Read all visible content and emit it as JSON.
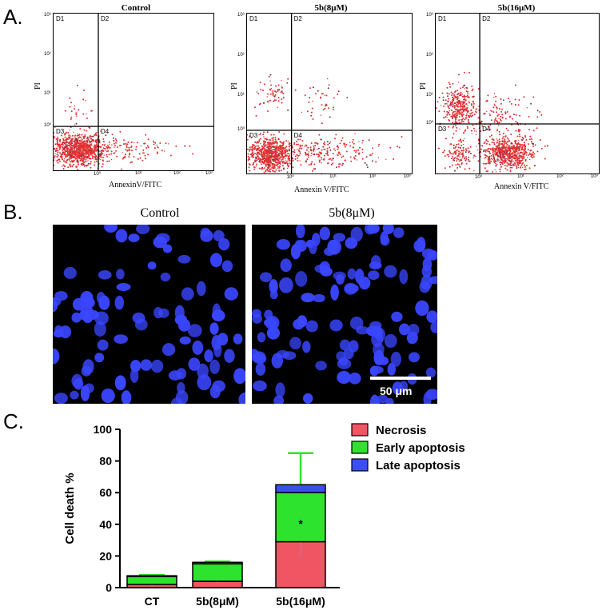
{
  "panels": {
    "a": "A.",
    "b": "B.",
    "c": "C."
  },
  "flow_plots": [
    {
      "title": "Control",
      "xlabel": "AnnexinV/FITC",
      "ylabel": "PI",
      "quadrants": [
        "D1",
        "D2",
        "D3",
        "D4"
      ]
    },
    {
      "title": "5b(8μM)",
      "xlabel": "Annexin V/FITC",
      "ylabel": "PI",
      "quadrants": [
        "D1",
        "D2",
        "D3",
        "D4"
      ]
    },
    {
      "title": "5b(16μM)",
      "xlabel": "Annexin V/FITC",
      "ylabel": "PI",
      "quadrants": [
        "D1",
        "D2",
        "D3",
        "D4"
      ]
    }
  ],
  "flow_ticks": {
    "y": [
      "10³",
      "10²",
      "10¹",
      "10⁰"
    ],
    "x": [
      "10⁰",
      "10¹",
      "10²",
      "10³"
    ]
  },
  "micrographs": {
    "left_title": "Control",
    "right_title": "5b(8μM)",
    "scale_label": "50 μm"
  },
  "colors": {
    "necrosis": "#f05563",
    "early": "#2ee32e",
    "late": "#3b4ef0",
    "dots": "#e83030",
    "nuclei": "#3a46ff"
  },
  "chart_data": {
    "type": "bar",
    "stacked": true,
    "categories": [
      "CT",
      "5b(8μM)",
      "5b(16μM)"
    ],
    "ylabel": "Cell death %",
    "ylim": [
      0,
      100
    ],
    "yticks": [
      0,
      20,
      40,
      60,
      80,
      100
    ],
    "legend_position": "top-right",
    "series": [
      {
        "name": "Necrosis",
        "values": [
          2,
          4,
          29
        ],
        "errors": [
          1,
          1.5,
          10
        ]
      },
      {
        "name": "Early apoptosis",
        "values": [
          5,
          11,
          31
        ],
        "errors": [
          1,
          1.5,
          25
        ]
      },
      {
        "name": "Late apoptosis",
        "values": [
          0.5,
          1,
          5
        ],
        "errors": [
          0,
          0,
          0
        ]
      }
    ],
    "annotations": [
      {
        "category": "5b(16μM)",
        "text": "*"
      }
    ]
  }
}
